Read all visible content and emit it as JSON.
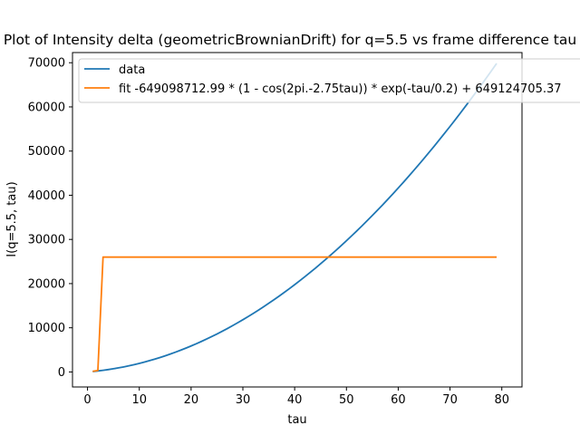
{
  "chart_data": {
    "type": "line",
    "title": "Plot of Intensity delta (geometricBrownianDrift) for q=5.5 vs frame difference tau",
    "xlabel": "tau",
    "ylabel": "I(q=5.5, tau)",
    "xlim": [
      -2.9,
      83.9
    ],
    "ylim": [
      -3400,
      72300
    ],
    "xticks": [
      0,
      10,
      20,
      30,
      40,
      50,
      60,
      70,
      80
    ],
    "yticks": [
      0,
      10000,
      20000,
      30000,
      40000,
      50000,
      60000,
      70000
    ],
    "grid": false,
    "legend_position": "top-left",
    "series": [
      {
        "name": "data",
        "color": "#1f77b4",
        "x_start": 1,
        "x_end": 79,
        "quadratic": {
          "a": 10.0,
          "b": 94.0,
          "c": 0
        }
      },
      {
        "name": "fit -649098712.99 * (1 - cos(2pi.-2.75tau)) * exp(-tau/0.2) + 649124705.37",
        "color": "#ff7f0e",
        "x": [
          1,
          2,
          3,
          4,
          79
        ],
        "y": [
          150,
          350,
          26000,
          26000,
          26000
        ]
      }
    ]
  }
}
